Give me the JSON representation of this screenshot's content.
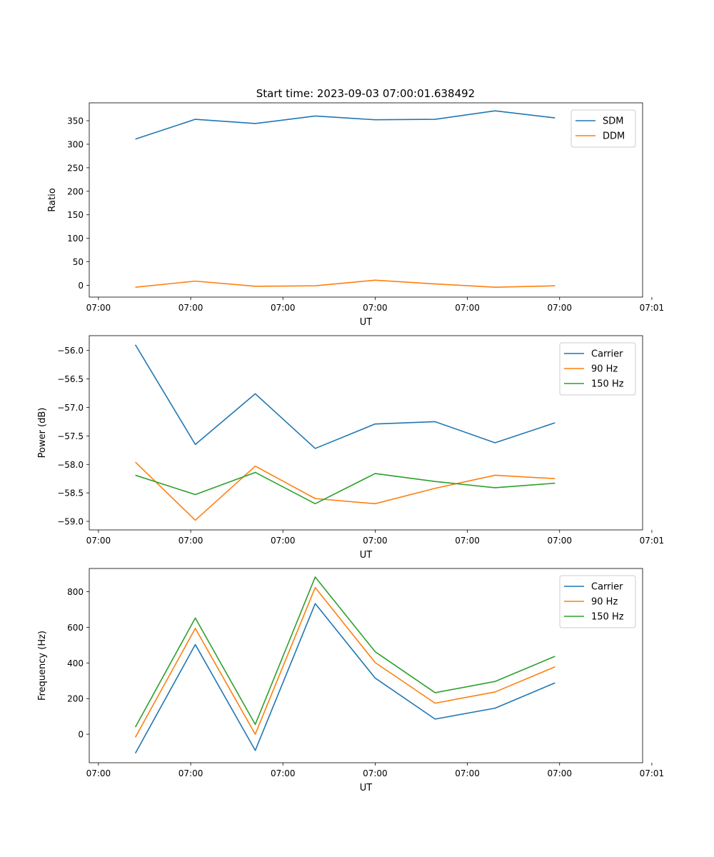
{
  "figure_title": "Start time: 2023-09-03 07:00:01.638492",
  "colors": {
    "blue": "#1f77b4",
    "orange": "#ff7f0e",
    "green": "#2ca02c"
  },
  "chart_data": [
    {
      "type": "line",
      "title": "Start time: 2023-09-03 07:00:01.638492",
      "xlabel": "UT",
      "ylabel": "Ratio",
      "x": [
        0.5,
        1.15,
        1.8,
        2.45,
        3.1,
        3.75,
        4.4,
        5.05
      ],
      "xlim": [
        0.0,
        6.0
      ],
      "xticks": [
        0.1,
        1.1,
        2.1,
        3.1,
        4.1,
        5.1,
        6.1
      ],
      "xtick_labels": [
        "07:00",
        "07:00",
        "07:00",
        "07:00",
        "07:00",
        "07:00",
        "07:01"
      ],
      "ylim": [
        -25,
        388
      ],
      "yticks": [
        0,
        50,
        100,
        150,
        200,
        250,
        300,
        350
      ],
      "ytick_labels": [
        "0",
        "50",
        "100",
        "150",
        "200",
        "250",
        "300",
        "350"
      ],
      "legend": "top-right",
      "series": [
        {
          "name": "SDM",
          "color": "#1f77b4",
          "values": [
            311,
            353,
            344,
            360,
            352,
            353,
            371,
            356
          ]
        },
        {
          "name": "DDM",
          "color": "#ff7f0e",
          "values": [
            -4,
            9,
            -2,
            -1,
            11,
            3,
            -4,
            -1
          ]
        }
      ]
    },
    {
      "type": "line",
      "xlabel": "UT",
      "ylabel": "Power (dB)",
      "x": [
        0.5,
        1.15,
        1.8,
        2.45,
        3.1,
        3.75,
        4.4,
        5.05
      ],
      "xlim": [
        0.0,
        6.0
      ],
      "xticks": [
        0.1,
        1.1,
        2.1,
        3.1,
        4.1,
        5.1,
        6.1
      ],
      "xtick_labels": [
        "07:00",
        "07:00",
        "07:00",
        "07:00",
        "07:00",
        "07:00",
        "07:01"
      ],
      "ylim": [
        -59.15,
        -55.74
      ],
      "yticks": [
        -59.0,
        -58.5,
        -58.0,
        -57.5,
        -57.0,
        -56.5,
        -56.0
      ],
      "ytick_labels": [
        "−59.0",
        "−58.5",
        "−58.0",
        "−57.5",
        "−57.0",
        "−56.5",
        "−56.0"
      ],
      "legend": "top-right",
      "series": [
        {
          "name": "Carrier",
          "color": "#1f77b4",
          "values": [
            -55.9,
            -57.65,
            -56.76,
            -57.72,
            -57.29,
            -57.25,
            -57.62,
            -57.27
          ]
        },
        {
          "name": "90 Hz",
          "color": "#ff7f0e",
          "values": [
            -57.96,
            -58.98,
            -58.03,
            -58.6,
            -58.69,
            -58.42,
            -58.19,
            -58.25
          ]
        },
        {
          "name": "150 Hz",
          "color": "#2ca02c",
          "values": [
            -58.19,
            -58.53,
            -58.14,
            -58.69,
            -58.16,
            -58.3,
            -58.41,
            -58.33
          ]
        }
      ]
    },
    {
      "type": "line",
      "xlabel": "UT",
      "ylabel": "Frequency (Hz)",
      "x": [
        0.5,
        1.15,
        1.8,
        2.45,
        3.1,
        3.75,
        4.4,
        5.05
      ],
      "xlim": [
        0.0,
        6.0
      ],
      "xticks": [
        0.1,
        1.1,
        2.1,
        3.1,
        4.1,
        5.1,
        6.1
      ],
      "xtick_labels": [
        "07:00",
        "07:00",
        "07:00",
        "07:00",
        "07:00",
        "07:00",
        "07:01"
      ],
      "ylim": [
        -160,
        930
      ],
      "yticks": [
        0,
        200,
        400,
        600,
        800
      ],
      "ytick_labels": [
        "0",
        "200",
        "400",
        "600",
        "800"
      ],
      "legend": "top-right",
      "series": [
        {
          "name": "Carrier",
          "color": "#1f77b4",
          "values": [
            -107,
            503,
            -91,
            733,
            315,
            85,
            146,
            288
          ]
        },
        {
          "name": "90 Hz",
          "color": "#ff7f0e",
          "values": [
            -17,
            594,
            0,
            823,
            402,
            174,
            237,
            378
          ]
        },
        {
          "name": "150 Hz",
          "color": "#2ca02c",
          "values": [
            40,
            652,
            55,
            882,
            463,
            233,
            296,
            437
          ]
        }
      ]
    }
  ]
}
